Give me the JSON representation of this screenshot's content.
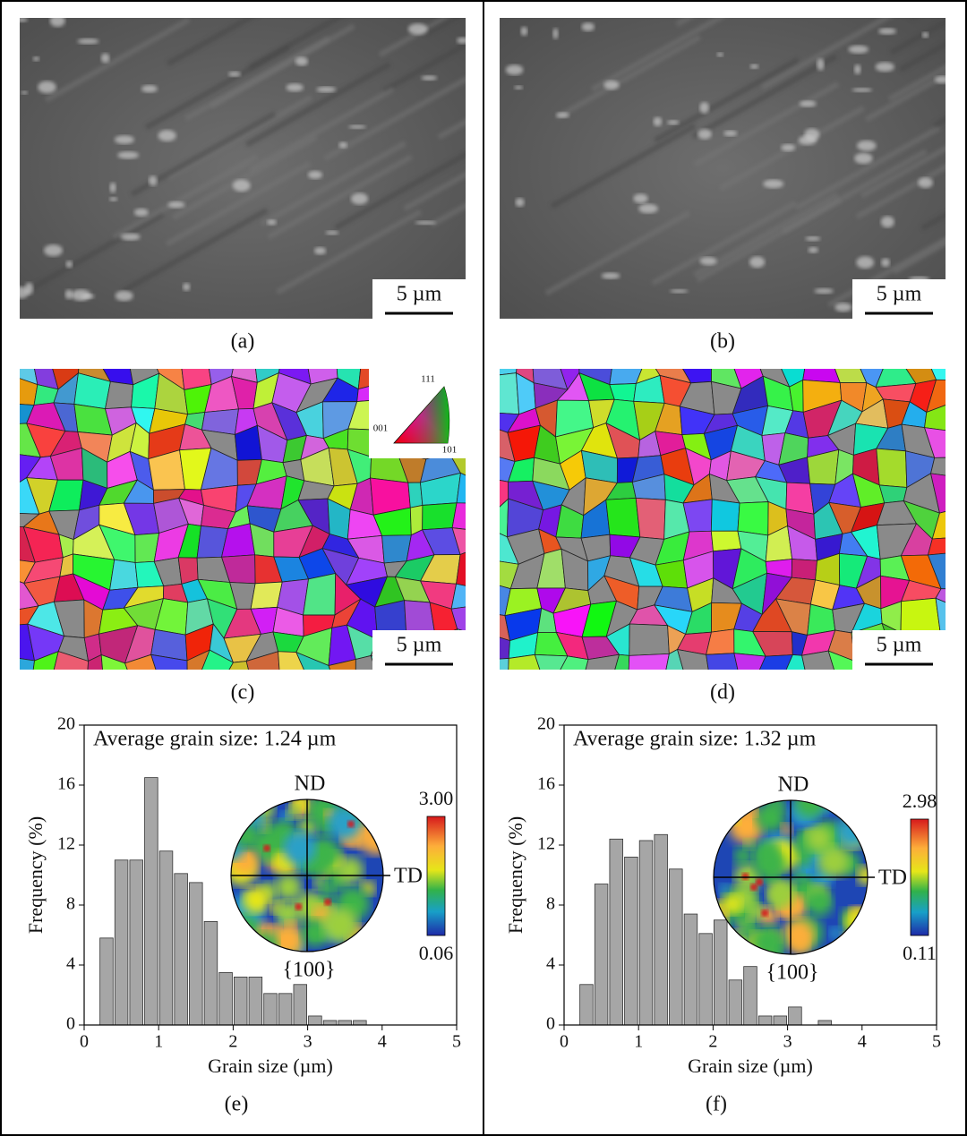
{
  "panels": {
    "a": {
      "label": "(a)",
      "scale_bar": "5 µm"
    },
    "b": {
      "label": "(b)",
      "scale_bar": "5 µm"
    },
    "c": {
      "label": "(c)",
      "scale_bar": "5 µm"
    },
    "d": {
      "label": "(d)",
      "scale_bar": "5 µm"
    },
    "e": {
      "label": "(e)"
    },
    "f": {
      "label": "(f)"
    }
  },
  "ipf_legend": {
    "top": "111",
    "left": "001",
    "right": "101"
  },
  "chart_data": [
    {
      "type": "histogram",
      "annotation": "Average grain size: 1.24 µm",
      "x_label": "Grain size (µm)",
      "y_label": "Frequency (%)",
      "bins": [
        0.2,
        0.4,
        0.6,
        0.8,
        1.0,
        1.2,
        1.4,
        1.6,
        1.8,
        2.0,
        2.2,
        2.4,
        2.6,
        2.8,
        3.0,
        3.2,
        3.4,
        3.6,
        3.8
      ],
      "values": [
        5.8,
        11,
        11,
        16.5,
        11.6,
        10.1,
        9.5,
        6.9,
        3.5,
        3.2,
        3.2,
        2.1,
        2.1,
        2.7,
        0.6,
        0.3,
        0.3,
        0.3
      ],
      "color": "#a6a6a6",
      "xlim": [
        0,
        5
      ],
      "xticks": [
        0,
        1,
        2,
        3,
        4,
        5
      ],
      "ylim": [
        0,
        20
      ],
      "yticks": [
        0,
        4,
        8,
        12,
        16,
        20
      ],
      "inset": {
        "top": "ND",
        "right": "TD",
        "bottom": "{100}",
        "colorbar_max": "3.00",
        "colorbar_min": "0.06"
      }
    },
    {
      "type": "histogram",
      "annotation": "Average grain size: 1.32 µm",
      "x_label": "Grain size (µm)",
      "y_label": "Frequency (%)",
      "bins": [
        0.2,
        0.4,
        0.6,
        0.8,
        1.0,
        1.2,
        1.4,
        1.6,
        1.8,
        2.0,
        2.2,
        2.4,
        2.6,
        2.8,
        3.0,
        3.2,
        3.4,
        3.6
      ],
      "values": [
        2.7,
        9.4,
        12.4,
        11.2,
        12.3,
        12.7,
        10.4,
        7.4,
        6.1,
        7.0,
        3.0,
        3.9,
        0.6,
        0.6,
        1.2,
        0,
        0.3
      ],
      "color": "#a6a6a6",
      "xlim": [
        0,
        5
      ],
      "xticks": [
        0,
        1,
        2,
        3,
        4,
        5
      ],
      "ylim": [
        0,
        20
      ],
      "yticks": [
        0,
        4,
        8,
        12,
        16,
        20
      ],
      "inset": {
        "top": "ND",
        "right": "TD",
        "bottom": "{100}",
        "colorbar_max": "2.98",
        "colorbar_min": "0.11"
      }
    }
  ]
}
